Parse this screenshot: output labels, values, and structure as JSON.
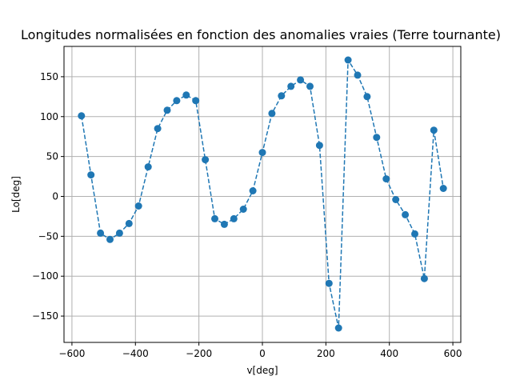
{
  "chart_data": {
    "type": "line",
    "title": "Longitudes normalisées en fonction des anomalies vraies (Terre tournante)",
    "xlabel": "v[deg]",
    "ylabel": "Lo[deg]",
    "xlim": [
      -625,
      625
    ],
    "ylim": [
      -183,
      188
    ],
    "xticks": [
      -600,
      -400,
      -200,
      0,
      200,
      400,
      600
    ],
    "yticks": [
      -150,
      -100,
      -50,
      0,
      50,
      100,
      150
    ],
    "xtick_labels": [
      "−600",
      "−400",
      "−200",
      "0",
      "200",
      "400",
      "600"
    ],
    "ytick_labels": [
      "−150",
      "−100",
      "−50",
      "0",
      "50",
      "100",
      "150"
    ],
    "grid": true,
    "line_style": "dashed",
    "marker": "circle",
    "color": "#1f77b4",
    "series": [
      {
        "x": [
          -570,
          -540,
          -510,
          -480,
          -450,
          -420,
          -390,
          -360,
          -330,
          -300,
          -270,
          -240,
          -210,
          -180,
          -150,
          -120,
          -90,
          -60,
          -30,
          0,
          30,
          60,
          90,
          120,
          150,
          180,
          210,
          240,
          270,
          300,
          330,
          360,
          390,
          420,
          450,
          480,
          510,
          540,
          570
        ],
        "y": [
          101,
          27,
          -46,
          -54,
          -46,
          -34,
          -12,
          37,
          85,
          108,
          120,
          127,
          120,
          46,
          -28,
          -35,
          -28,
          -16,
          7,
          55,
          104,
          126,
          138,
          146,
          138,
          64,
          -109,
          -165,
          171,
          152,
          125,
          74,
          22,
          -4,
          -23,
          -47,
          -103,
          83,
          10
        ]
      }
    ]
  }
}
